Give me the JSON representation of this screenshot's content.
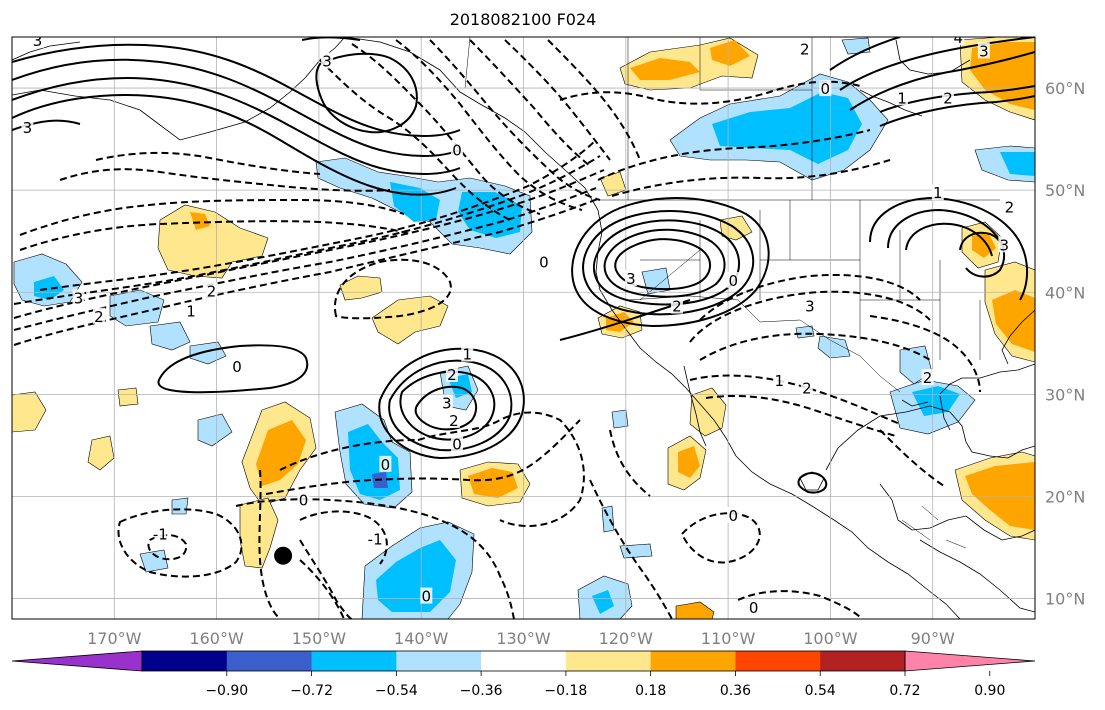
{
  "figure": {
    "title": "2018082100 F024"
  },
  "map": {
    "lon_range": [
      -180,
      -80
    ],
    "lat_range": [
      8,
      65
    ],
    "lon_ticks": [
      -170,
      -160,
      -150,
      -140,
      -130,
      -120,
      -110,
      -100,
      -90
    ],
    "lon_labels": [
      "170°W",
      "160°W",
      "150°W",
      "140°W",
      "130°W",
      "120°W",
      "110°W",
      "100°W",
      "90°W"
    ],
    "lat_ticks": [
      10,
      20,
      30,
      40,
      50,
      60
    ],
    "lat_labels": [
      "10°N",
      "20°N",
      "30°N",
      "40°N",
      "50°N",
      "60°N"
    ],
    "grid": true,
    "contour_labels": [
      {
        "lon": -173.5,
        "lat": 39.3,
        "text": "3"
      },
      {
        "lon": -171.5,
        "lat": 37.5,
        "text": "2"
      },
      {
        "lon": -160.5,
        "lat": 40.0,
        "text": "2"
      },
      {
        "lon": -162.5,
        "lat": 38.0,
        "text": "1"
      },
      {
        "lon": -158.0,
        "lat": 32.6,
        "text": "0"
      },
      {
        "lon": -149.2,
        "lat": 62.5,
        "text": "3"
      },
      {
        "lon": -136.5,
        "lat": 53.8,
        "text": "0"
      },
      {
        "lon": -128.0,
        "lat": 42.8,
        "text": "0"
      },
      {
        "lon": -135.5,
        "lat": 33.8,
        "text": "1"
      },
      {
        "lon": -137.0,
        "lat": 31.8,
        "text": "2"
      },
      {
        "lon": -137.5,
        "lat": 29.0,
        "text": "3"
      },
      {
        "lon": -136.8,
        "lat": 27.3,
        "text": "2"
      },
      {
        "lon": -136.5,
        "lat": 25.0,
        "text": "0"
      },
      {
        "lon": -143.5,
        "lat": 23.0,
        "text": "0"
      },
      {
        "lon": -151.5,
        "lat": 19.5,
        "text": "0"
      },
      {
        "lon": -165.5,
        "lat": 16.2,
        "text": "-1"
      },
      {
        "lon": -144.5,
        "lat": 15.7,
        "text": "-1"
      },
      {
        "lon": -139.5,
        "lat": 10.1,
        "text": "0"
      },
      {
        "lon": -119.5,
        "lat": 41.2,
        "text": "3"
      },
      {
        "lon": -115.0,
        "lat": 38.5,
        "text": "2"
      },
      {
        "lon": -109.5,
        "lat": 41.0,
        "text": "0"
      },
      {
        "lon": -102.0,
        "lat": 38.5,
        "text": "3"
      },
      {
        "lon": -105.0,
        "lat": 31.2,
        "text": "1"
      },
      {
        "lon": -102.3,
        "lat": 30.5,
        "text": "2"
      },
      {
        "lon": -109.5,
        "lat": 18.0,
        "text": "0"
      },
      {
        "lon": -107.5,
        "lat": 9.0,
        "text": "0"
      },
      {
        "lon": -102.5,
        "lat": 63.7,
        "text": "2"
      },
      {
        "lon": -100.5,
        "lat": 59.8,
        "text": "0"
      },
      {
        "lon": -93.0,
        "lat": 58.9,
        "text": "1"
      },
      {
        "lon": -88.5,
        "lat": 58.9,
        "text": "2"
      },
      {
        "lon": -85.0,
        "lat": 63.5,
        "text": "3"
      },
      {
        "lon": -87.5,
        "lat": 64.8,
        "text": "4"
      },
      {
        "lon": -89.5,
        "lat": 49.6,
        "text": "1"
      },
      {
        "lon": -82.5,
        "lat": 48.2,
        "text": "2"
      },
      {
        "lon": -83.0,
        "lat": 44.5,
        "text": "3"
      },
      {
        "lon": -90.5,
        "lat": 31.5,
        "text": "2"
      },
      {
        "lon": -178.5,
        "lat": 56.0,
        "text": "3"
      },
      {
        "lon": -177.5,
        "lat": 64.5,
        "text": "3"
      }
    ],
    "marker": {
      "lon": -153.5,
      "lat": 14.2
    }
  },
  "colorbar": {
    "ticks": [
      "−0.90",
      "−0.72",
      "−0.54",
      "−0.36",
      "−0.18",
      "0.18",
      "0.36",
      "0.54",
      "0.72",
      "0.90"
    ],
    "colors": [
      "#9932cc",
      "#00008b",
      "#3a5fcd",
      "#00bfff",
      "#b0e2ff",
      "#ffffff",
      "#ffe78e",
      "#ffa500",
      "#ff4500",
      "#b22222",
      "#ff82ab"
    ]
  },
  "shading": {
    "pos1": "#ffe78e",
    "pos2": "#ffa500",
    "neg1": "#b0e2ff",
    "neg2": "#00bfff",
    "neg3": "#3a5fcd"
  }
}
